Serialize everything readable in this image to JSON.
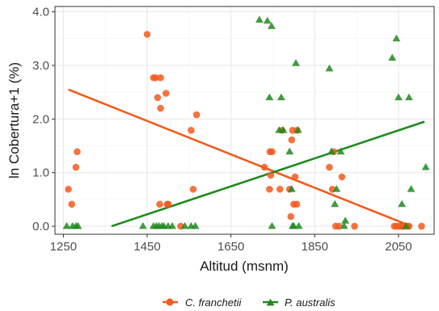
{
  "chart_data": {
    "type": "scatter",
    "xlabel": "Altitud (msnm)",
    "ylabel": "ln Cobertura+1 (%)",
    "xlim": [
      1230,
      2135
    ],
    "ylim": [
      -0.15,
      4.1
    ],
    "x_ticks": [
      1250,
      1450,
      1650,
      1850,
      2050
    ],
    "x_tick_labels": [
      "1250",
      "1450",
      "1650",
      "1850",
      "2050"
    ],
    "y_ticks": [
      0,
      1,
      2,
      3,
      4
    ],
    "y_tick_labels": [
      "0.0",
      "1.0",
      "2.0",
      "3.0",
      "4.0"
    ],
    "grid": true,
    "legend_position": "bottom",
    "series": [
      {
        "name": "C. franchetii",
        "marker": "circle",
        "color": "#F25B1D",
        "points": [
          [
            1262,
            0.69
          ],
          [
            1270,
            0.41
          ],
          [
            1280,
            1.1
          ],
          [
            1283,
            1.39
          ],
          [
            1450,
            3.58
          ],
          [
            1465,
            2.77
          ],
          [
            1470,
            2.77
          ],
          [
            1475,
            2.4
          ],
          [
            1482,
            2.2
          ],
          [
            1482,
            2.77
          ],
          [
            1480,
            0.41
          ],
          [
            1495,
            2.48
          ],
          [
            1500,
            0.41
          ],
          [
            1498,
            0.41
          ],
          [
            1530,
            0.0
          ],
          [
            1555,
            1.79
          ],
          [
            1560,
            0.69
          ],
          [
            1568,
            2.08
          ],
          [
            1730,
            1.1
          ],
          [
            1742,
            0.69
          ],
          [
            1745,
            0.95
          ],
          [
            1743,
            1.39
          ],
          [
            1748,
            1.39
          ],
          [
            1767,
            0.69
          ],
          [
            1772,
            1.79
          ],
          [
            1790,
            0.69
          ],
          [
            1793,
            0.18
          ],
          [
            1795,
            1.61
          ],
          [
            1797,
            1.79
          ],
          [
            1800,
            0.41
          ],
          [
            1803,
            0.92
          ],
          [
            1807,
            0.41
          ],
          [
            1808,
            1.79
          ],
          [
            1885,
            1.1
          ],
          [
            1892,
            0.69
          ],
          [
            1895,
            1.39
          ],
          [
            1900,
            0.0
          ],
          [
            1908,
            0.0
          ],
          [
            1915,
            0.92
          ],
          [
            1945,
            0.0
          ],
          [
            2040,
            0.0
          ],
          [
            2045,
            0.0
          ],
          [
            2052,
            0.0
          ],
          [
            2058,
            0.0
          ],
          [
            2062,
            0.0
          ],
          [
            2070,
            0.0
          ],
          [
            2075,
            0.0
          ],
          [
            2105,
            0.0
          ]
        ],
        "trend": {
          "x": [
            1262,
            2080
          ],
          "y": [
            2.55,
            0.0
          ]
        }
      },
      {
        "name": "P. australis",
        "marker": "triangle",
        "color": "#1E8A1E",
        "points": [
          [
            1258,
            0.0
          ],
          [
            1272,
            0.0
          ],
          [
            1280,
            0.0
          ],
          [
            1285,
            0.0
          ],
          [
            1440,
            0.0
          ],
          [
            1465,
            0.0
          ],
          [
            1472,
            0.0
          ],
          [
            1478,
            0.0
          ],
          [
            1485,
            0.0
          ],
          [
            1490,
            0.0
          ],
          [
            1500,
            0.0
          ],
          [
            1510,
            0.0
          ],
          [
            1540,
            0.0
          ],
          [
            1555,
            0.0
          ],
          [
            1565,
            0.0
          ],
          [
            1718,
            3.85
          ],
          [
            1737,
            3.83
          ],
          [
            1742,
            2.4
          ],
          [
            1747,
            3.73
          ],
          [
            1748,
            0.0
          ],
          [
            1765,
            1.79
          ],
          [
            1770,
            2.4
          ],
          [
            1775,
            1.79
          ],
          [
            1790,
            1.39
          ],
          [
            1795,
            0.69
          ],
          [
            1797,
            0.0
          ],
          [
            1800,
            0.0
          ],
          [
            1805,
            3.04
          ],
          [
            1810,
            1.79
          ],
          [
            1812,
            0.0
          ],
          [
            1885,
            2.94
          ],
          [
            1890,
            1.39
          ],
          [
            1898,
            0.41
          ],
          [
            1902,
            0.69
          ],
          [
            1912,
            1.39
          ],
          [
            1920,
            0.0
          ],
          [
            1923,
            0.1
          ],
          [
            2035,
            3.14
          ],
          [
            2045,
            3.5
          ],
          [
            2050,
            2.4
          ],
          [
            2058,
            0.41
          ],
          [
            2068,
            0.0
          ],
          [
            2075,
            2.4
          ],
          [
            2080,
            0.69
          ],
          [
            2115,
            1.1
          ]
        ],
        "trend": {
          "x": [
            1365,
            2112
          ],
          "y": [
            0.0,
            1.95
          ]
        }
      }
    ]
  }
}
